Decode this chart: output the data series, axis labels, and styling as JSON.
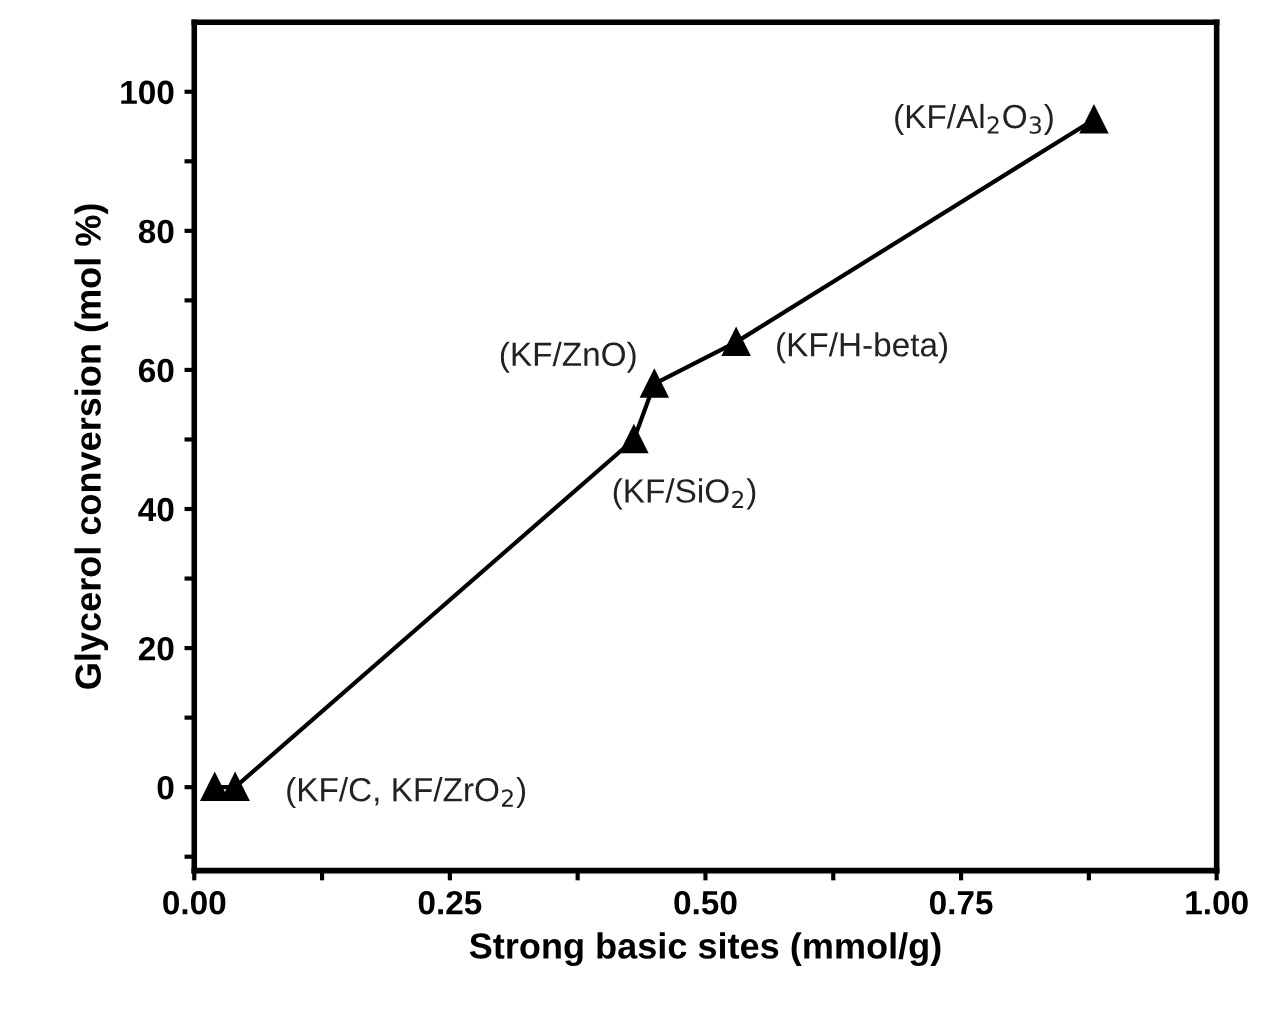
{
  "chart_data": {
    "type": "line",
    "xlabel": "Strong basic sites (mmol/g)",
    "ylabel": "Glycerol conversion (mol %)",
    "x": [
      0.02,
      0.04,
      0.43,
      0.45,
      0.53,
      0.88
    ],
    "series": [
      {
        "color": "#000000",
        "values": [
          0,
          0,
          50,
          58,
          64,
          96
        ]
      }
    ],
    "marker": "triangle",
    "line_style": "solid",
    "grid": false,
    "legend": false,
    "xlim": [
      0,
      1.0
    ],
    "ylim": [
      -12,
      110
    ],
    "xticks": [
      "0.00",
      {
        "value": 0.125,
        "label": null
      },
      0.25,
      {
        "value": 0.375,
        "label": null
      },
      {
        "value": 0.5,
        "label": "0.50"
      },
      {
        "value": 0.625,
        "label": null
      },
      0.75,
      {
        "value": 0.875,
        "label": null
      },
      {
        "value": 1.0,
        "label": "1.00"
      }
    ],
    "yticks": [
      {
        "value": -10,
        "label": null
      },
      0,
      {
        "value": 10,
        "label": null
      },
      20,
      {
        "value": 30,
        "label": null
      },
      40,
      {
        "value": 50,
        "label": null
      },
      60,
      {
        "value": 70,
        "label": null
      },
      80,
      {
        "value": 90,
        "label": null
      },
      100
    ],
    "annotations": [
      {
        "text": "(KF/C, KF/ZrO$_{2}$)",
        "x": 0.04,
        "y": 0
      },
      {
        "text": "(KF/SiO$_{2}$)",
        "x": 0.43,
        "y": 50
      },
      {
        "text": "(KF/ZnO)",
        "x": 0.45,
        "y": 58
      },
      {
        "text": "(KF/H-beta)",
        "x": 0.53,
        "y": 64
      },
      {
        "text": "(KF/Al$_{2}$O$_{3}$)",
        "x": 0.88,
        "y": 96
      }
    ]
  }
}
